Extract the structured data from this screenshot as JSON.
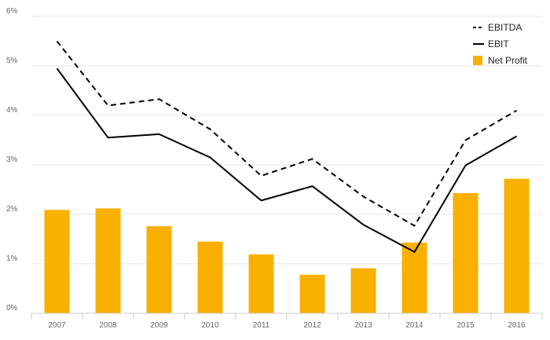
{
  "chart_data": {
    "type": "bar",
    "categories": [
      "2007",
      "2008",
      "2009",
      "2010",
      "2011",
      "2012",
      "2013",
      "2014",
      "2015",
      "2016"
    ],
    "series": [
      {
        "name": "EBITDA",
        "kind": "line",
        "style": "dashed",
        "color": "#000000",
        "values": [
          5.5,
          4.2,
          4.33,
          3.72,
          2.78,
          3.12,
          2.36,
          1.77,
          3.5,
          4.1
        ]
      },
      {
        "name": "EBIT",
        "kind": "line",
        "style": "solid",
        "color": "#000000",
        "values": [
          4.95,
          3.55,
          3.62,
          3.15,
          2.28,
          2.57,
          1.79,
          1.24,
          2.99,
          3.58
        ]
      },
      {
        "name": "Net Profit",
        "kind": "bar",
        "color": "#f9b000",
        "values": [
          2.09,
          2.12,
          1.76,
          1.45,
          1.19,
          0.78,
          0.91,
          1.43,
          2.43,
          2.72
        ]
      }
    ],
    "y_ticks": [
      "0%",
      "1%",
      "2%",
      "3%",
      "4%",
      "5%",
      "6%"
    ],
    "ylim": [
      0,
      6
    ],
    "y_unit": "%",
    "grid": "horizontal",
    "legend_position": "top-right",
    "title": "",
    "xlabel": "",
    "ylabel": ""
  }
}
